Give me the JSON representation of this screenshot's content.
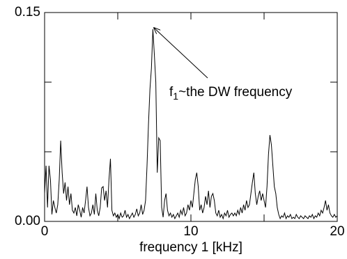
{
  "chart_data": {
    "type": "line",
    "xlabel": "frequency 1 [kHz]",
    "annotation": {
      "parts": [
        "f",
        "1",
        "~the DW frequency"
      ]
    },
    "color": "#000000",
    "xlim": [
      0,
      20
    ],
    "xticks": [
      0,
      10,
      20
    ],
    "xminorticks": [
      5,
      15
    ],
    "ylim": [
      0,
      0.15
    ],
    "yticks": [
      {
        "value": 0,
        "label": "0.00"
      },
      {
        "value": 0.15,
        "label": "0.15"
      }
    ],
    "yminorticks": [
      0.05,
      0.1
    ],
    "x": [
      0,
      0.1,
      0.2,
      0.3,
      0.4,
      0.5,
      0.6,
      0.7,
      0.8,
      0.9,
      1,
      1.1,
      1.2,
      1.3,
      1.4,
      1.5,
      1.6,
      1.7,
      1.8,
      1.9,
      2,
      2.1,
      2.2,
      2.3,
      2.4,
      2.5,
      2.6,
      2.7,
      2.8,
      2.9,
      3,
      3.1,
      3.2,
      3.3,
      3.4,
      3.5,
      3.6,
      3.7,
      3.8,
      3.9,
      4,
      4.1,
      4.2,
      4.3,
      4.4,
      4.5,
      4.6,
      4.7,
      4.8,
      4.9,
      5,
      5.1,
      5.2,
      5.3,
      5.4,
      5.5,
      5.6,
      5.7,
      5.8,
      5.9,
      6,
      6.1,
      6.2,
      6.3,
      6.4,
      6.5,
      6.6,
      6.7,
      6.8,
      6.9,
      7,
      7.1,
      7.2,
      7.3,
      7.4,
      7.5,
      7.6,
      7.7,
      7.8,
      7.9,
      8,
      8.1,
      8.2,
      8.3,
      8.4,
      8.5,
      8.6,
      8.7,
      8.8,
      8.9,
      9,
      9.1,
      9.2,
      9.3,
      9.4,
      9.5,
      9.6,
      9.7,
      9.8,
      9.9,
      10,
      10.1,
      10.2,
      10.3,
      10.4,
      10.5,
      10.6,
      10.7,
      10.8,
      10.9,
      11,
      11.1,
      11.2,
      11.3,
      11.4,
      11.5,
      11.6,
      11.7,
      11.8,
      11.9,
      12,
      12.1,
      12.2,
      12.3,
      12.4,
      12.5,
      12.6,
      12.7,
      12.8,
      12.9,
      13,
      13.1,
      13.2,
      13.3,
      13.4,
      13.5,
      13.6,
      13.7,
      13.8,
      13.9,
      14,
      14.1,
      14.2,
      14.3,
      14.4,
      14.5,
      14.6,
      14.7,
      14.8,
      14.9,
      15,
      15.1,
      15.2,
      15.3,
      15.4,
      15.5,
      15.6,
      15.7,
      15.8,
      15.9,
      16,
      16.1,
      16.2,
      16.3,
      16.4,
      16.5,
      16.6,
      16.7,
      16.8,
      16.9,
      17,
      17.1,
      17.2,
      17.3,
      17.4,
      17.5,
      17.6,
      17.7,
      17.8,
      17.9,
      18,
      18.1,
      18.2,
      18.3,
      18.4,
      18.5,
      18.6,
      18.7,
      18.8,
      18.9,
      19,
      19.1,
      19.2,
      19.3,
      19.4,
      19.5,
      19.6,
      19.7,
      19.8,
      19.9,
      20
    ],
    "values": [
      0.02,
      0.04,
      0.01,
      0.04,
      0.03,
      0.005,
      0.015,
      0.01,
      0.006,
      0.012,
      0.03,
      0.058,
      0.035,
      0.02,
      0.028,
      0.015,
      0.025,
      0.012,
      0.02,
      0.008,
      0.006,
      0.01,
      0.004,
      0.012,
      0.008,
      0.003,
      0.01,
      0.006,
      0.015,
      0.025,
      0.01,
      0.004,
      0.006,
      0.012,
      0.005,
      0.02,
      0.008,
      0.004,
      0.01,
      0.024,
      0.025,
      0.015,
      0.022,
      0.01,
      0.03,
      0.045,
      0.008,
      0.004,
      0.006,
      0.003,
      0.005,
      0.002,
      0.006,
      0.003,
      0.004,
      0.008,
      0.003,
      0.005,
      0.002,
      0.004,
      0.006,
      0.003,
      0.005,
      0.009,
      0.004,
      0.006,
      0.012,
      0.005,
      0.008,
      0.015,
      0.04,
      0.07,
      0.095,
      0.11,
      0.138,
      0.12,
      0.1,
      0.035,
      0.06,
      0.058,
      0.01,
      0.003,
      0.015,
      0.02,
      0.008,
      0.004,
      0.006,
      0.003,
      0.005,
      0.002,
      0.004,
      0.006,
      0.003,
      0.008,
      0.005,
      0.01,
      0.004,
      0.006,
      0.012,
      0.008,
      0.015,
      0.01,
      0.02,
      0.03,
      0.035,
      0.025,
      0.008,
      0.012,
      0.006,
      0.01,
      0.018,
      0.012,
      0.022,
      0.01,
      0.018,
      0.02,
      0.015,
      0.006,
      0.004,
      0.008,
      0.003,
      0.005,
      0.002,
      0.006,
      0.004,
      0.008,
      0.003,
      0.005,
      0.006,
      0.004,
      0.006,
      0.004,
      0.008,
      0.005,
      0.01,
      0.006,
      0.012,
      0.008,
      0.015,
      0.01,
      0.012,
      0.02,
      0.028,
      0.035,
      0.02,
      0.012,
      0.018,
      0.022,
      0.015,
      0.02,
      0.015,
      0.01,
      0.025,
      0.048,
      0.062,
      0.055,
      0.04,
      0.025,
      0.02,
      0.01,
      0.005,
      0.002,
      0.004,
      0.003,
      0.006,
      0.002,
      0.004,
      0.003,
      0.005,
      0.002,
      0.003,
      0.002,
      0.005,
      0.003,
      0.002,
      0.004,
      0.003,
      0.002,
      0.004,
      0.003,
      0.002,
      0.004,
      0.003,
      0.005,
      0.002,
      0.004,
      0.003,
      0.006,
      0.004,
      0.008,
      0.006,
      0.01,
      0.015,
      0.008,
      0.012,
      0.006,
      0.004,
      0.003,
      0.005,
      0.003,
      0.004
    ]
  }
}
